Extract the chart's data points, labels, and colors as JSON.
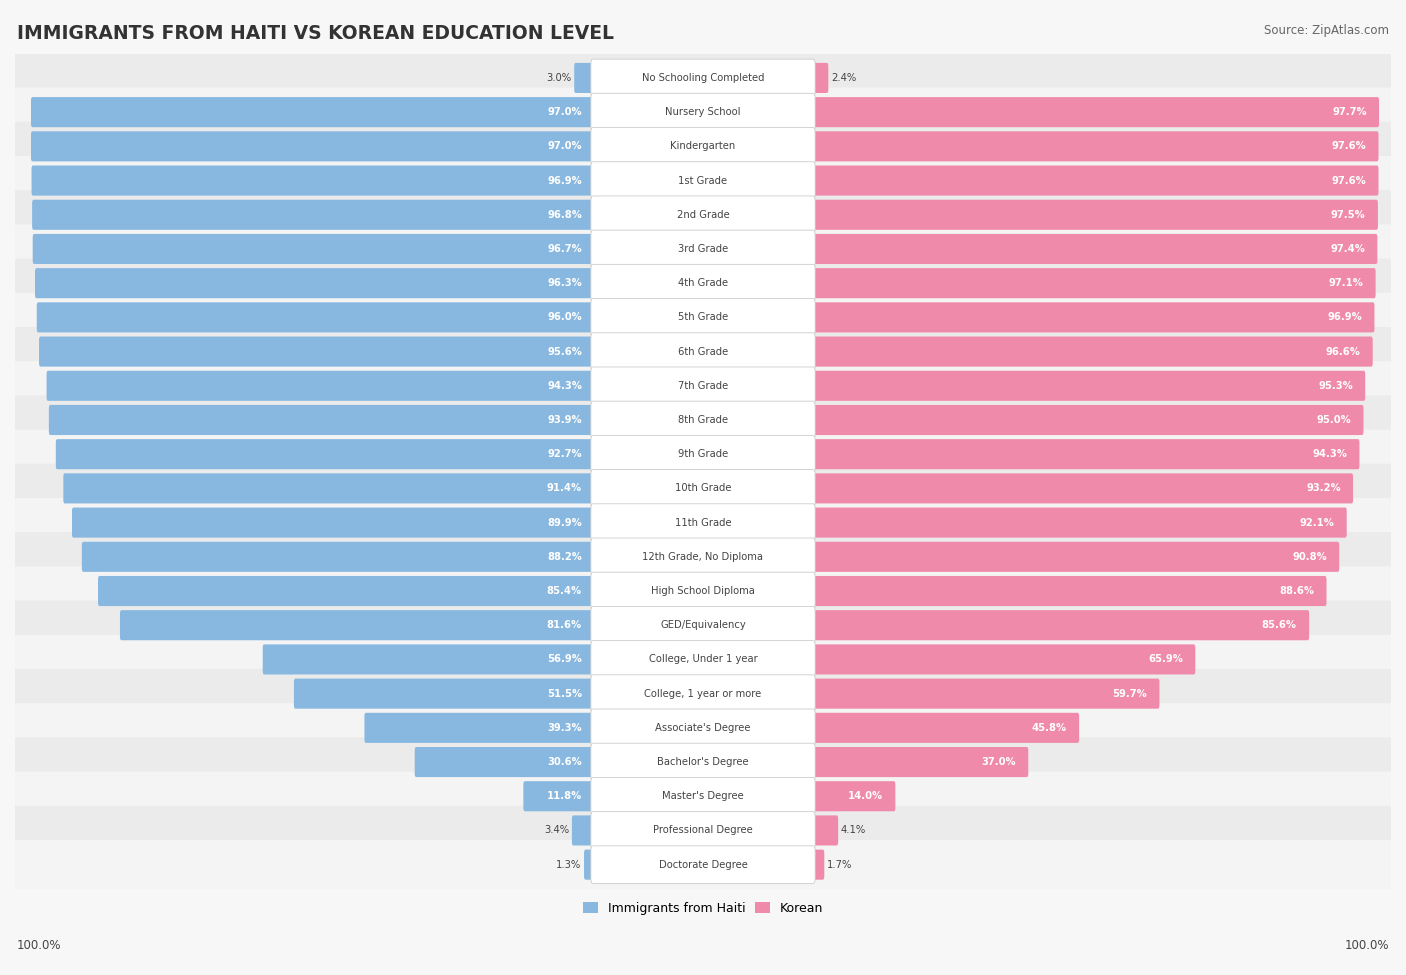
{
  "title": "IMMIGRANTS FROM HAITI VS KOREAN EDUCATION LEVEL",
  "source": "Source: ZipAtlas.com",
  "legend": [
    "Immigrants from Haiti",
    "Korean"
  ],
  "haiti_color": "#88b8e0",
  "korean_color": "#f08aab",
  "row_color_even": "#f2f2f2",
  "row_color_odd": "#e8e8e8",
  "bar_bg_color": "#f2f2f2",
  "background_color": "#f7f7f7",
  "label_box_color": "#ffffff",
  "categories": [
    "No Schooling Completed",
    "Nursery School",
    "Kindergarten",
    "1st Grade",
    "2nd Grade",
    "3rd Grade",
    "4th Grade",
    "5th Grade",
    "6th Grade",
    "7th Grade",
    "8th Grade",
    "9th Grade",
    "10th Grade",
    "11th Grade",
    "12th Grade, No Diploma",
    "High School Diploma",
    "GED/Equivalency",
    "College, Under 1 year",
    "College, 1 year or more",
    "Associate's Degree",
    "Bachelor's Degree",
    "Master's Degree",
    "Professional Degree",
    "Doctorate Degree"
  ],
  "haiti_values": [
    3.0,
    97.0,
    97.0,
    96.9,
    96.8,
    96.7,
    96.3,
    96.0,
    95.6,
    94.3,
    93.9,
    92.7,
    91.4,
    89.9,
    88.2,
    85.4,
    81.6,
    56.9,
    51.5,
    39.3,
    30.6,
    11.8,
    3.4,
    1.3
  ],
  "korean_values": [
    2.4,
    97.7,
    97.6,
    97.6,
    97.5,
    97.4,
    97.1,
    96.9,
    96.6,
    95.3,
    95.0,
    94.3,
    93.2,
    92.1,
    90.8,
    88.6,
    85.6,
    65.9,
    59.7,
    45.8,
    37.0,
    14.0,
    4.1,
    1.7
  ]
}
